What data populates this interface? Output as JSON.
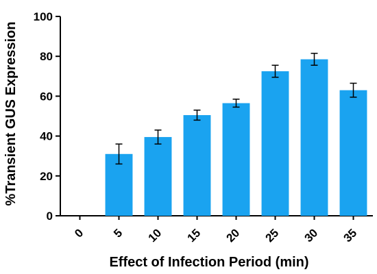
{
  "chart_data": {
    "type": "bar",
    "title": "",
    "xlabel": "Effect of Infection Period (min)",
    "ylabel": "%Transient GUS Expression",
    "categories": [
      "0",
      "5",
      "10",
      "15",
      "20",
      "25",
      "30",
      "35"
    ],
    "values": [
      0,
      31,
      39.5,
      50.5,
      56.5,
      72.5,
      78.5,
      63
    ],
    "errors": [
      0,
      5,
      3.5,
      2.5,
      2,
      3,
      3,
      3.5
    ],
    "ylim": [
      0,
      100
    ],
    "yticks": [
      0,
      20,
      40,
      60,
      80,
      100
    ],
    "grid": false,
    "legend": "none",
    "bar_color": "#1aa3f0"
  }
}
